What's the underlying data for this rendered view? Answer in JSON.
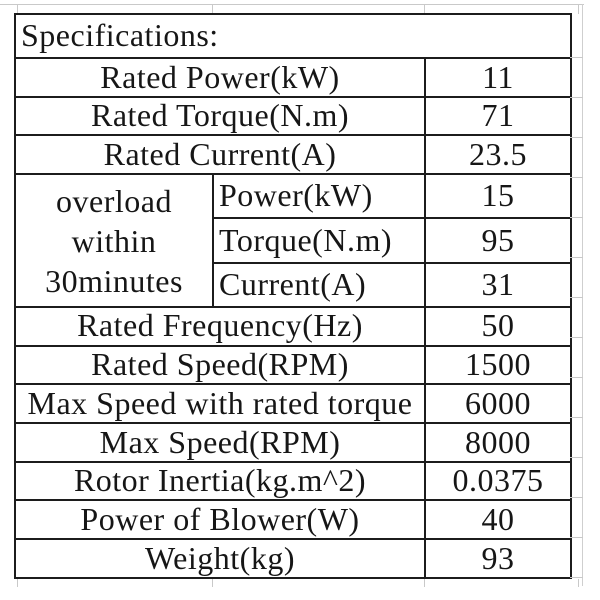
{
  "page": {
    "background_color": "#ffffff",
    "text_color": "#161616",
    "table_border_color": "#1c1c1c",
    "gridline_color": "#c9c9c9"
  },
  "table": {
    "title": "Specifications:",
    "rows_before_overload": [
      {
        "label": "Rated Power(kW)",
        "value": "11"
      },
      {
        "label": "Rated Torque(N.m)",
        "value": "71"
      },
      {
        "label": "Rated Current(A)",
        "value": "23.5"
      }
    ],
    "overload": {
      "label_lines": [
        "overload",
        "within",
        "30minutes"
      ],
      "rows": [
        {
          "label": "Power(kW)",
          "value": "15"
        },
        {
          "label": "Torque(N.m)",
          "value": "95"
        },
        {
          "label": "Current(A)",
          "value": "31"
        }
      ]
    },
    "rows_after_overload": [
      {
        "label": "Rated Frequency(Hz)",
        "value": "50"
      },
      {
        "label": "Rated Speed(RPM)",
        "value": "1500"
      },
      {
        "label": "Max Speed with rated torque",
        "value": "6000"
      },
      {
        "label": "Max Speed(RPM)",
        "value": "8000"
      },
      {
        "label": "Rotor Inertia(kg.m^2)",
        "value": "0.0375"
      },
      {
        "label": "Power of Blower(W)",
        "value": "40"
      },
      {
        "label": "Weight(kg)",
        "value": "93"
      }
    ]
  }
}
